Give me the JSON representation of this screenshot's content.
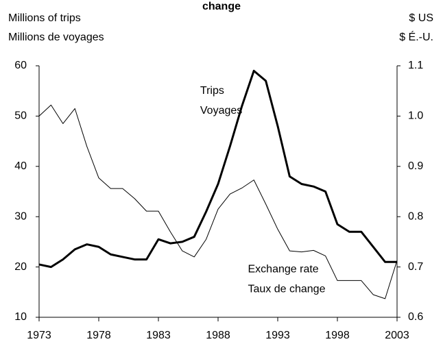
{
  "chart_data": {
    "type": "line",
    "title": "change",
    "y_label": [
      "Millions of trips",
      "Millions de voyages"
    ],
    "y2_label": [
      "$ US",
      "$ É.-U."
    ],
    "x": [
      1973,
      1974,
      1975,
      1976,
      1977,
      1978,
      1979,
      1980,
      1981,
      1982,
      1983,
      1984,
      1985,
      1986,
      1987,
      1988,
      1989,
      1990,
      1991,
      1992,
      1993,
      1994,
      1995,
      1996,
      1997,
      1998,
      1999,
      2000,
      2001,
      2002,
      2003
    ],
    "series": [
      {
        "name": "Trips",
        "color": "#000000",
        "line_width": 3,
        "values": [
          20.5,
          20,
          21.5,
          23.5,
          24.5,
          24,
          22.5,
          22,
          21.5,
          21.5,
          25.5,
          24.7,
          25,
          26,
          31,
          36.5,
          44,
          52,
          59,
          57,
          48,
          38,
          36.5,
          36,
          35,
          28.5,
          27,
          27,
          24,
          21,
          21
        ]
      },
      {
        "name": "Exchange rate",
        "color": "#000000",
        "line_width": 1,
        "axis": "y2",
        "values": [
          1.0,
          1.022,
          0.985,
          1.015,
          0.94,
          0.877,
          0.856,
          0.856,
          0.836,
          0.811,
          0.811,
          0.77,
          0.732,
          0.72,
          0.755,
          0.815,
          0.845,
          0.857,
          0.873,
          0.825,
          0.775,
          0.732,
          0.73,
          0.733,
          0.722,
          0.673,
          0.673,
          0.673,
          0.645,
          0.637,
          0.713
        ]
      }
    ],
    "annotations": [
      {
        "lines": [
          "Trips",
          "Voyages"
        ],
        "x": 1986.5,
        "y": 55
      },
      {
        "lines": [
          "Exchange rate",
          "Taux de change"
        ],
        "x": 1990.5,
        "y": 19.5
      }
    ],
    "xlim": [
      1973,
      2003
    ],
    "xticks": [
      1973,
      1978,
      1983,
      1988,
      1993,
      1998,
      2003
    ],
    "ylim": [
      10,
      60
    ],
    "yticks": [
      10,
      20,
      30,
      40,
      50,
      60
    ],
    "y2lim": [
      0.6,
      1.1
    ],
    "y2ticks": [
      0.6,
      0.7,
      0.8,
      0.9,
      {
        "value": 1,
        "label": "1.0"
      },
      1.1
    ]
  }
}
